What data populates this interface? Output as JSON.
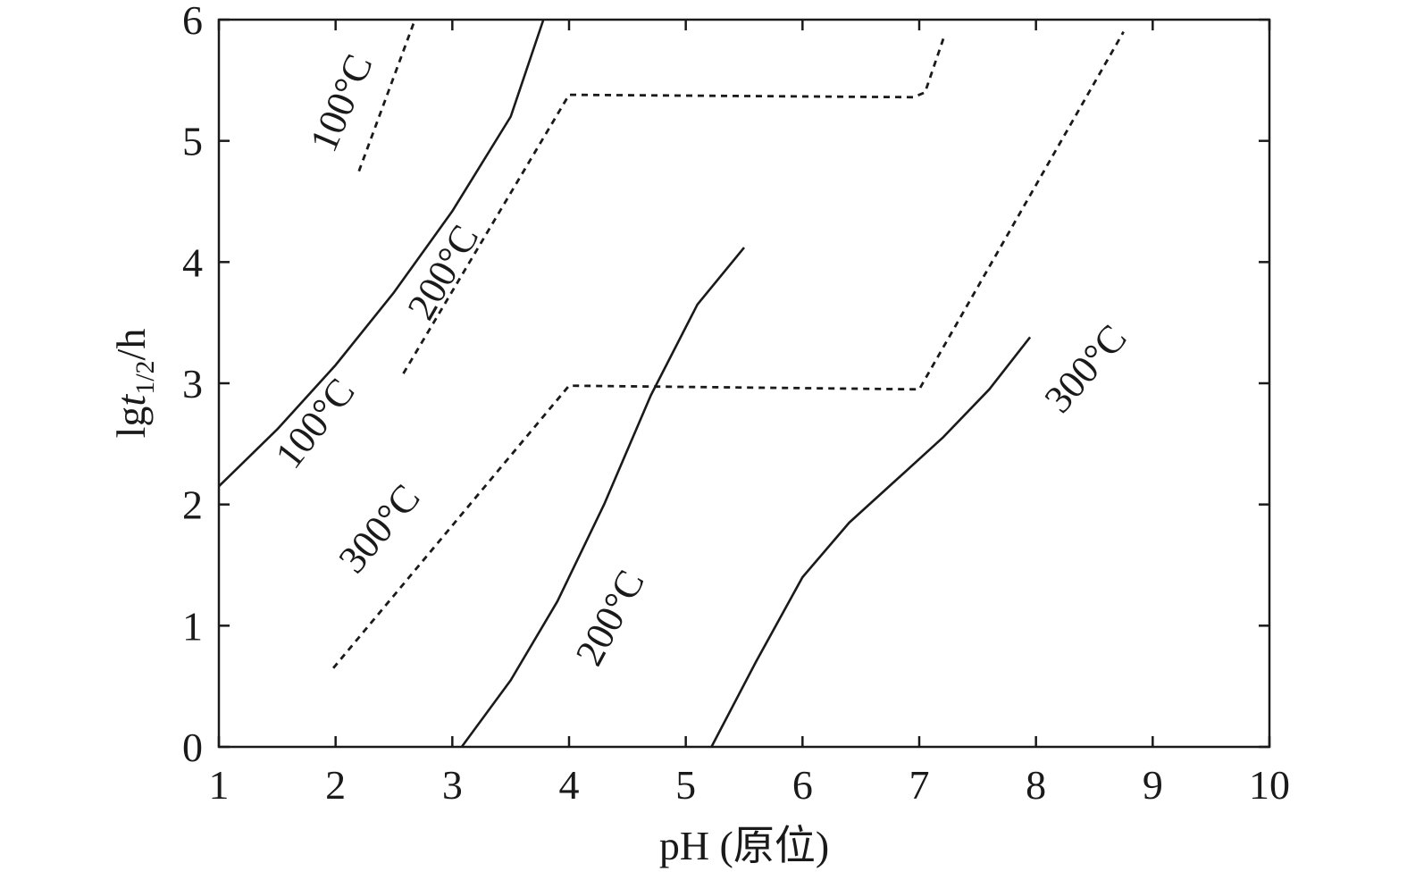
{
  "chart_data": {
    "type": "line",
    "xlabel": "pH (原位)",
    "ylabel_main": "lg",
    "ylabel_var": "t",
    "ylabel_sub": "1/2",
    "ylabel_unit": "/h",
    "xlim": [
      1,
      10
    ],
    "ylim": [
      0,
      6
    ],
    "xticks": [
      "1",
      "2",
      "3",
      "4",
      "5",
      "6",
      "7",
      "8",
      "9",
      "10"
    ],
    "yticks": [
      "0",
      "1",
      "2",
      "3",
      "4",
      "5",
      "6"
    ],
    "grid": false,
    "colors": {
      "line": "#1a1a1a"
    },
    "series": [
      {
        "id": "solid-100",
        "style": "solid",
        "points": [
          [
            1.0,
            2.15
          ],
          [
            1.5,
            2.62
          ],
          [
            2.0,
            3.15
          ],
          [
            2.5,
            3.75
          ],
          [
            3.0,
            4.42
          ],
          [
            3.5,
            5.2
          ],
          [
            3.78,
            6.0
          ]
        ]
      },
      {
        "id": "solid-200",
        "style": "solid",
        "points": [
          [
            3.08,
            0.0
          ],
          [
            3.5,
            0.55
          ],
          [
            3.9,
            1.2
          ],
          [
            4.3,
            2.0
          ],
          [
            4.7,
            2.9
          ],
          [
            5.1,
            3.65
          ],
          [
            5.5,
            4.12
          ]
        ]
      },
      {
        "id": "solid-300",
        "style": "solid",
        "points": [
          [
            5.22,
            0.0
          ],
          [
            5.6,
            0.7
          ],
          [
            6.0,
            1.4
          ],
          [
            6.4,
            1.85
          ],
          [
            6.8,
            2.2
          ],
          [
            7.2,
            2.55
          ],
          [
            7.6,
            2.95
          ],
          [
            7.95,
            3.38
          ]
        ]
      },
      {
        "id": "dotted-100",
        "style": "dotted",
        "points": [
          [
            2.2,
            4.75
          ],
          [
            2.68,
            6.0
          ]
        ]
      },
      {
        "id": "dotted-200",
        "style": "dotted",
        "points": [
          [
            2.58,
            3.08
          ],
          [
            4.0,
            5.38
          ],
          [
            6.95,
            5.36
          ],
          [
            7.05,
            5.4
          ],
          [
            7.22,
            5.88
          ]
        ]
      },
      {
        "id": "dotted-300",
        "style": "dotted",
        "points": [
          [
            1.98,
            0.65
          ],
          [
            4.0,
            2.98
          ],
          [
            7.0,
            2.95
          ],
          [
            8.75,
            5.9
          ]
        ]
      }
    ],
    "annotations": [
      {
        "id": "label-solid-100",
        "text": "100°C",
        "x": 1.85,
        "y": 2.65,
        "angle": -52
      },
      {
        "id": "label-solid-200",
        "text": "200°C",
        "x": 4.38,
        "y": 1.05,
        "angle": -62
      },
      {
        "id": "label-solid-300",
        "text": "300°C",
        "x": 8.45,
        "y": 3.1,
        "angle": -49
      },
      {
        "id": "label-dotted-100",
        "text": "100°C",
        "x": 2.08,
        "y": 5.3,
        "angle": -67
      },
      {
        "id": "label-dotted-200",
        "text": "200°C",
        "x": 2.95,
        "y": 3.9,
        "angle": -60
      },
      {
        "id": "label-dotted-300",
        "text": "300°C",
        "x": 2.4,
        "y": 1.78,
        "angle": -50
      }
    ]
  }
}
